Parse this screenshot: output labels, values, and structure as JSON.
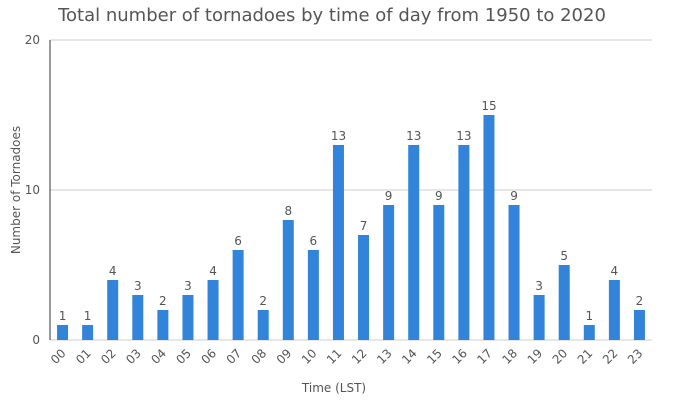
{
  "chart_data": {
    "type": "bar",
    "title": "Total number of tornadoes by time of day from 1950 to 2020",
    "xlabel": "Time (LST)",
    "ylabel": "Number of Tornadoes",
    "ylim": [
      0,
      20
    ],
    "yticks": [
      "0",
      "10",
      "20"
    ],
    "grid": true,
    "bar_color": "#3184da",
    "categories": [
      "00",
      "01",
      "02",
      "03",
      "04",
      "05",
      "06",
      "07",
      "08",
      "09",
      "10",
      "11",
      "12",
      "13",
      "14",
      "15",
      "16",
      "17",
      "18",
      "19",
      "20",
      "21",
      "22",
      "23"
    ],
    "values": [
      1,
      1,
      4,
      3,
      2,
      3,
      4,
      6,
      2,
      8,
      6,
      13,
      7,
      9,
      13,
      9,
      13,
      15,
      9,
      3,
      5,
      1,
      4,
      2
    ]
  }
}
